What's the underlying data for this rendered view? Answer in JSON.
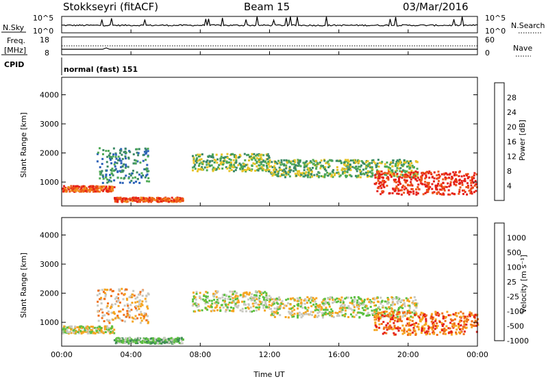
{
  "header": {
    "station": "Stokkseyri (fitACF)",
    "beam": "Beam 15",
    "date": "03/Mar/2016"
  },
  "nsky_panel": {
    "label": "N.Sky",
    "ticks_left": [
      "10^5",
      "10^0"
    ],
    "right_label": "N.Search",
    "ticks_right": [
      "10^5",
      "10^0"
    ]
  },
  "freq_panel": {
    "label_line1": "Freq.",
    "label_line2": "[MHz]",
    "ticks_left": [
      "18",
      "8"
    ],
    "right_label": "Nave",
    "ticks_right": [
      "60",
      "0"
    ],
    "cpid_label": "CPID",
    "cpid_text": "normal (fast) 151"
  },
  "chart_data": [
    {
      "type": "heatmap",
      "title": "",
      "ylabel": "Slant Range [km]",
      "ylim": [
        180,
        4600
      ],
      "yticks": [
        "1000",
        "2000",
        "3000",
        "4000"
      ],
      "xlim": [
        "00:00",
        "24:00"
      ],
      "colorbar_label": "Power [dB]",
      "colorbar_ticks": [
        "4",
        "8",
        "12",
        "16",
        "20",
        "24",
        "28"
      ],
      "colorbar_colors": [
        "#1111ee",
        "#2c62b8",
        "#3c8a66",
        "#4faa55",
        "#e6c326",
        "#f08a1c",
        "#ee5518",
        "#e52018"
      ],
      "bands": [
        {
          "t0": 0.0,
          "t1": 3.0,
          "r0": 700,
          "r1": 900,
          "level": 6
        },
        {
          "t0": 3.0,
          "t1": 7.0,
          "r0": 350,
          "r1": 500,
          "level": 6
        },
        {
          "t0": 7.5,
          "t1": 12.0,
          "r0": 1400,
          "r1": 2000,
          "level": 3
        },
        {
          "t0": 12.0,
          "t1": 20.5,
          "r0": 1200,
          "r1": 1800,
          "level": 3
        },
        {
          "t0": 18.0,
          "t1": 24.0,
          "r0": 600,
          "r1": 1400,
          "level": 7
        },
        {
          "t0": 2.0,
          "t1": 5.0,
          "r0": 1000,
          "r1": 2200,
          "level": 2
        }
      ]
    },
    {
      "type": "heatmap",
      "title": "",
      "ylabel": "Slant Range [km]",
      "ylim": [
        180,
        4600
      ],
      "yticks": [
        "1000",
        "2000",
        "3000",
        "4000"
      ],
      "xlabel": "Time UT",
      "xticks": [
        "00:00",
        "04:00",
        "08:00",
        "12:00",
        "16:00",
        "20:00",
        "00:00"
      ],
      "xlim": [
        "00:00",
        "24:00"
      ],
      "colorbar_label": "Velocity [m s⁻¹]",
      "colorbar_ticks": [
        "1000",
        "500",
        "100",
        "25",
        "-25",
        "-100",
        "-500",
        "-1000"
      ],
      "colorbar_colors": [
        "#2222cc",
        "#2c6aaa",
        "#3f8f55",
        "#5cc040",
        "#c8c8c0",
        "#f5a520",
        "#f07018",
        "#e52018"
      ],
      "bands": [
        {
          "t0": 0.0,
          "t1": 3.0,
          "r0": 650,
          "r1": 900,
          "level": 4
        },
        {
          "t0": 3.0,
          "t1": 7.0,
          "r0": 300,
          "r1": 500,
          "level": 3
        },
        {
          "t0": 7.5,
          "t1": 12.0,
          "r0": 1400,
          "r1": 2100,
          "level": 4
        },
        {
          "t0": 12.0,
          "t1": 20.5,
          "r0": 1200,
          "r1": 1900,
          "level": 4
        },
        {
          "t0": 18.0,
          "t1": 24.0,
          "r0": 600,
          "r1": 1400,
          "level": 6
        },
        {
          "t0": 2.0,
          "t1": 5.0,
          "r0": 1000,
          "r1": 2200,
          "level": 5
        }
      ]
    }
  ]
}
